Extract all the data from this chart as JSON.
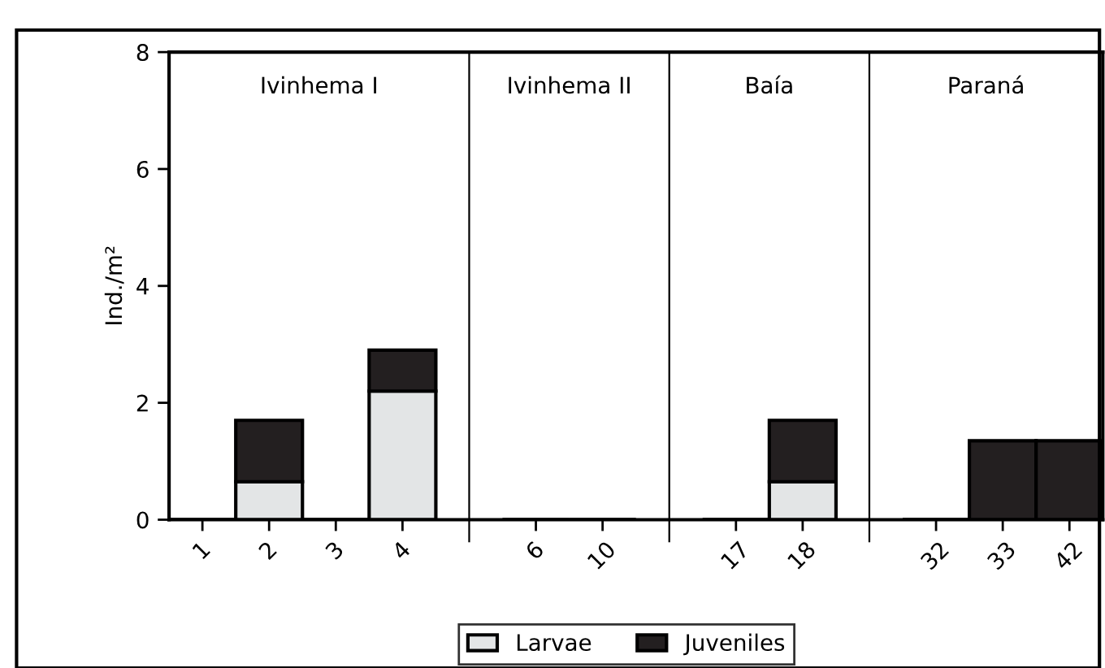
{
  "chart_data": {
    "type": "bar",
    "stacked": true,
    "ylabel": "Ind./m²",
    "categories": [
      "1",
      "2",
      "3",
      "4",
      null,
      "6",
      "10",
      null,
      "17",
      "18",
      null,
      "32",
      "33",
      "42"
    ],
    "series": [
      {
        "name": "Larvae",
        "color": "#e3e5e6",
        "values": [
          0,
          0.65,
          0,
          2.2,
          null,
          0,
          0,
          null,
          0,
          0.65,
          null,
          0,
          0,
          0
        ]
      },
      {
        "name": "Juveniles",
        "color": "#231f20",
        "values": [
          0,
          1.05,
          0,
          0.7,
          null,
          0,
          0,
          null,
          0,
          1.05,
          null,
          0,
          1.35,
          1.35
        ]
      }
    ],
    "annotations": [
      "Ivinhema I",
      "Ivinhema II",
      "Baía",
      "Paraná"
    ],
    "ylim": [
      0,
      8
    ],
    "yticks": [
      0,
      2,
      4,
      6,
      8
    ],
    "grid": "x",
    "legend": "bottom"
  }
}
